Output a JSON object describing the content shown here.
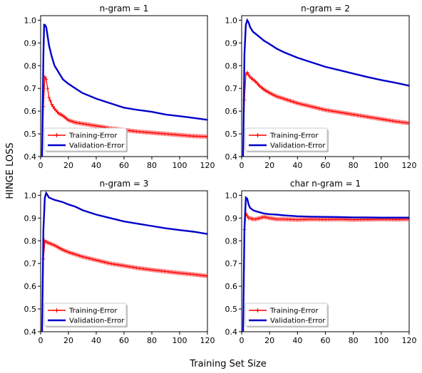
{
  "figure": {
    "shared_ylabel": "HINGE LOSS",
    "shared_xlabel": "Training Set Size"
  },
  "colors": {
    "training": "#ff0000",
    "validation": "#0000cc"
  },
  "chart_data": [
    {
      "type": "line",
      "title": "n-gram = 1",
      "xlim": [
        0,
        120
      ],
      "ylim": [
        0.4,
        1.02
      ],
      "xticks": [
        0,
        20,
        40,
        60,
        80,
        100,
        120
      ],
      "yticks": [
        0.4,
        0.5,
        0.6,
        0.7,
        0.8,
        0.9,
        1.0
      ],
      "legend_position": "lower-left",
      "series": [
        {
          "name": "Training-Error",
          "marker": "+",
          "x": [
            1,
            2,
            3,
            4,
            5,
            6,
            8,
            10,
            13,
            16,
            20,
            25,
            30,
            40,
            50,
            60,
            70,
            80,
            90,
            100,
            110,
            120
          ],
          "y": [
            0.4,
            0.62,
            0.75,
            0.74,
            0.7,
            0.66,
            0.63,
            0.61,
            0.59,
            0.58,
            0.56,
            0.55,
            0.545,
            0.535,
            0.525,
            0.517,
            0.51,
            0.505,
            0.5,
            0.495,
            0.49,
            0.488
          ]
        },
        {
          "name": "Validation-Error",
          "x": [
            1,
            2,
            2.5,
            3,
            4,
            5,
            6,
            8,
            10,
            13,
            16,
            20,
            25,
            30,
            40,
            50,
            60,
            70,
            80,
            90,
            100,
            110,
            120
          ],
          "y": [
            0.4,
            0.85,
            0.98,
            0.98,
            0.97,
            0.93,
            0.89,
            0.84,
            0.8,
            0.77,
            0.74,
            0.72,
            0.7,
            0.68,
            0.655,
            0.635,
            0.615,
            0.605,
            0.597,
            0.585,
            0.578,
            0.57,
            0.562
          ]
        }
      ]
    },
    {
      "type": "line",
      "title": "n-gram = 2",
      "xlim": [
        0,
        120
      ],
      "ylim": [
        0.4,
        1.02
      ],
      "xticks": [
        0,
        20,
        40,
        60,
        80,
        100,
        120
      ],
      "yticks": [
        0.4,
        0.5,
        0.6,
        0.7,
        0.8,
        0.9,
        1.0
      ],
      "legend_position": "lower-left",
      "series": [
        {
          "name": "Training-Error",
          "marker": "+",
          "x": [
            1,
            2,
            3,
            4,
            5,
            6,
            8,
            10,
            13,
            16,
            20,
            25,
            30,
            40,
            50,
            60,
            70,
            80,
            90,
            100,
            110,
            120
          ],
          "y": [
            0.4,
            0.65,
            0.76,
            0.77,
            0.76,
            0.75,
            0.74,
            0.73,
            0.71,
            0.695,
            0.68,
            0.665,
            0.655,
            0.635,
            0.62,
            0.605,
            0.595,
            0.585,
            0.575,
            0.565,
            0.555,
            0.547
          ]
        },
        {
          "name": "Validation-Error",
          "x": [
            1,
            2,
            3,
            4,
            5,
            6,
            8,
            10,
            13,
            16,
            20,
            25,
            30,
            40,
            50,
            60,
            70,
            80,
            90,
            100,
            110,
            120
          ],
          "y": [
            0.4,
            0.85,
            0.98,
            1.0,
            0.99,
            0.97,
            0.95,
            0.94,
            0.925,
            0.91,
            0.895,
            0.875,
            0.86,
            0.835,
            0.815,
            0.795,
            0.78,
            0.765,
            0.75,
            0.737,
            0.725,
            0.712
          ]
        }
      ]
    },
    {
      "type": "line",
      "title": "n-gram = 3",
      "xlim": [
        0,
        120
      ],
      "ylim": [
        0.4,
        1.02
      ],
      "xticks": [
        0,
        20,
        40,
        60,
        80,
        100,
        120
      ],
      "yticks": [
        0.4,
        0.5,
        0.6,
        0.7,
        0.8,
        0.9,
        1.0
      ],
      "legend_position": "lower-left",
      "series": [
        {
          "name": "Training-Error",
          "marker": "+",
          "x": [
            1,
            2,
            3,
            4,
            6,
            8,
            10,
            13,
            16,
            20,
            25,
            30,
            40,
            50,
            60,
            70,
            80,
            90,
            100,
            110,
            120
          ],
          "y": [
            0.4,
            0.72,
            0.8,
            0.795,
            0.79,
            0.785,
            0.78,
            0.77,
            0.76,
            0.75,
            0.74,
            0.73,
            0.715,
            0.7,
            0.69,
            0.68,
            0.672,
            0.665,
            0.658,
            0.652,
            0.645
          ]
        },
        {
          "name": "Validation-Error",
          "x": [
            1,
            2,
            3,
            4,
            5,
            6,
            8,
            10,
            13,
            16,
            20,
            25,
            30,
            40,
            50,
            60,
            70,
            80,
            90,
            100,
            110,
            120
          ],
          "y": [
            0.4,
            0.85,
            0.99,
            1.01,
            1.0,
            0.99,
            0.985,
            0.98,
            0.975,
            0.97,
            0.96,
            0.95,
            0.935,
            0.915,
            0.9,
            0.885,
            0.875,
            0.865,
            0.855,
            0.847,
            0.84,
            0.83
          ]
        }
      ]
    },
    {
      "type": "line",
      "title": "char n-gram = 1",
      "xlim": [
        0,
        120
      ],
      "ylim": [
        0.4,
        1.02
      ],
      "xticks": [
        0,
        20,
        40,
        60,
        80,
        100,
        120
      ],
      "yticks": [
        0.4,
        0.5,
        0.6,
        0.7,
        0.8,
        0.9,
        1.0
      ],
      "legend_position": "lower-left",
      "series": [
        {
          "name": "Training-Error",
          "marker": "+",
          "x": [
            1,
            2,
            3,
            4,
            5,
            6,
            8,
            10,
            13,
            16,
            20,
            25,
            30,
            40,
            50,
            60,
            70,
            80,
            90,
            100,
            110,
            120
          ],
          "y": [
            0.4,
            0.85,
            0.92,
            0.91,
            0.9,
            0.9,
            0.895,
            0.895,
            0.9,
            0.905,
            0.9,
            0.895,
            0.895,
            0.893,
            0.895,
            0.894,
            0.895,
            0.893,
            0.894,
            0.895,
            0.894,
            0.895
          ]
        },
        {
          "name": "Validation-Error",
          "x": [
            1,
            2,
            3,
            4,
            5,
            6,
            8,
            10,
            13,
            16,
            20,
            25,
            30,
            40,
            50,
            60,
            70,
            80,
            90,
            100,
            110,
            120
          ],
          "y": [
            0.4,
            0.85,
            0.99,
            0.985,
            0.96,
            0.945,
            0.935,
            0.93,
            0.925,
            0.92,
            0.917,
            0.915,
            0.912,
            0.908,
            0.906,
            0.905,
            0.904,
            0.903,
            0.903,
            0.902,
            0.902,
            0.902
          ]
        }
      ]
    }
  ]
}
